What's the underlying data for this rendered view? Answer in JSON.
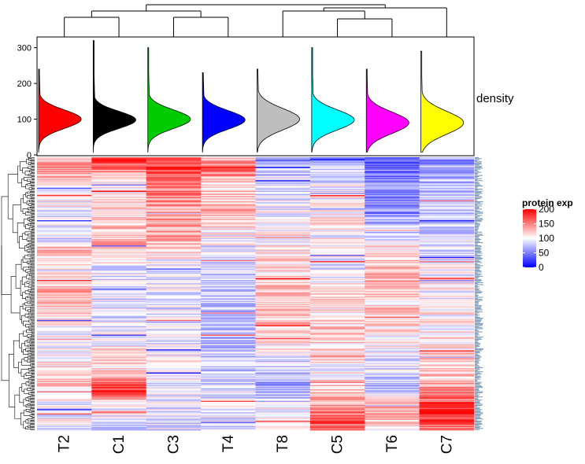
{
  "chart_data": {
    "type": "heatmap",
    "title": "",
    "columns": [
      "T2",
      "C1",
      "C3",
      "T4",
      "T8",
      "C5",
      "T6",
      "C7"
    ],
    "column_colors": [
      "#ff0000",
      "#000000",
      "#00cc00",
      "#0000ff",
      "#bebebe",
      "#00ffff",
      "#ff00ff",
      "#ffff00"
    ],
    "density_panel": {
      "label": "density",
      "y_ticks": [
        "0",
        "100",
        "200",
        "300"
      ],
      "ylim": [
        0,
        330
      ],
      "modes": [
        100,
        98,
        100,
        98,
        100,
        98,
        90,
        90
      ],
      "spreads": [
        26,
        24,
        26,
        26,
        30,
        28,
        30,
        32
      ],
      "max_values": [
        240,
        320,
        300,
        230,
        240,
        300,
        240,
        290
      ]
    },
    "legend": {
      "title": "protein exp",
      "labels": [
        "200",
        "150",
        "100",
        "50",
        "0"
      ],
      "values": [
        200,
        150,
        100,
        50,
        0
      ],
      "color_scale": [
        "#0000ff",
        "#ffffff",
        "#ff0000"
      ]
    },
    "value_range": [
      0,
      200
    ],
    "row_count": 260,
    "profiles": {
      "T2": [
        [
          0,
          110
        ],
        [
          0.03,
          150
        ],
        [
          0.1,
          105
        ],
        [
          0.3,
          90
        ],
        [
          0.35,
          130
        ],
        [
          0.42,
          95
        ],
        [
          0.5,
          140
        ],
        [
          0.55,
          120
        ],
        [
          0.65,
          95
        ],
        [
          0.82,
          120
        ],
        [
          0.9,
          100
        ],
        [
          1,
          95
        ]
      ],
      "C1": [
        [
          0,
          185
        ],
        [
          0.04,
          150
        ],
        [
          0.1,
          100
        ],
        [
          0.33,
          135
        ],
        [
          0.4,
          95
        ],
        [
          0.6,
          90
        ],
        [
          0.78,
          115
        ],
        [
          0.86,
          195
        ],
        [
          0.9,
          100
        ],
        [
          1,
          90
        ]
      ],
      "C3": [
        [
          0,
          165
        ],
        [
          0.04,
          170
        ],
        [
          0.1,
          150
        ],
        [
          0.2,
          140
        ],
        [
          0.3,
          135
        ],
        [
          0.42,
          90
        ],
        [
          0.6,
          90
        ],
        [
          0.8,
          100
        ],
        [
          0.9,
          95
        ],
        [
          1,
          90
        ]
      ],
      "T4": [
        [
          0,
          110
        ],
        [
          0.04,
          175
        ],
        [
          0.08,
          115
        ],
        [
          0.2,
          130
        ],
        [
          0.3,
          100
        ],
        [
          0.42,
          80
        ],
        [
          0.6,
          75
        ],
        [
          0.8,
          85
        ],
        [
          1,
          90
        ]
      ],
      "T8": [
        [
          0,
          50
        ],
        [
          0.05,
          80
        ],
        [
          0.2,
          95
        ],
        [
          0.4,
          115
        ],
        [
          0.55,
          130
        ],
        [
          0.7,
          100
        ],
        [
          0.85,
          60
        ],
        [
          0.93,
          100
        ],
        [
          1,
          95
        ]
      ],
      "C5": [
        [
          0,
          40
        ],
        [
          0.05,
          85
        ],
        [
          0.2,
          105
        ],
        [
          0.4,
          95
        ],
        [
          0.6,
          120
        ],
        [
          0.8,
          105
        ],
        [
          0.92,
          140
        ],
        [
          0.97,
          165
        ],
        [
          1,
          160
        ]
      ],
      "T6": [
        [
          0,
          30
        ],
        [
          0.05,
          50
        ],
        [
          0.2,
          55
        ],
        [
          0.4,
          130
        ],
        [
          0.5,
          120
        ],
        [
          0.7,
          100
        ],
        [
          0.85,
          75
        ],
        [
          0.92,
          145
        ],
        [
          1,
          110
        ]
      ],
      "C7": [
        [
          0,
          60
        ],
        [
          0.05,
          70
        ],
        [
          0.2,
          80
        ],
        [
          0.4,
          95
        ],
        [
          0.6,
          105
        ],
        [
          0.8,
          120
        ],
        [
          0.88,
          160
        ],
        [
          0.95,
          190
        ],
        [
          1,
          140
        ]
      ]
    }
  }
}
